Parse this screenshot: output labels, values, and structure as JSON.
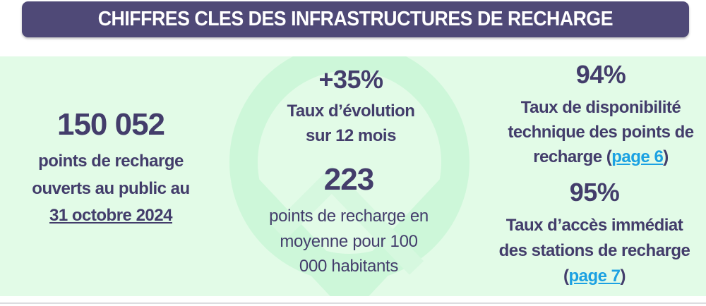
{
  "header": {
    "title": "CHIFFRES CLES DES INFRASTRUCTURES DE RECHARGE"
  },
  "colors": {
    "banner": "#4f4977",
    "panel": "#e2fbe7",
    "text": "#433d6b",
    "link": "#1ba1e2",
    "watermark": "#cdf7d9"
  },
  "left": {
    "value": "150 052",
    "lines": [
      "points de recharge",
      "ouverts au public au"
    ],
    "date": "31 octobre 2024"
  },
  "middle": {
    "evolution_value": "+35%",
    "evolution_lines": [
      "Taux d’évolution",
      "sur 12 mois"
    ],
    "density_value": "223",
    "density_lines": [
      "points de recharge en",
      "moyenne pour 100",
      "000 habitants"
    ]
  },
  "right": {
    "availability_value": "94%",
    "availability_lines": [
      "Taux de disponibilité",
      "technique des points de",
      "recharge ("
    ],
    "availability_link": "page 6",
    "availability_close": ")",
    "access_value": "95%",
    "access_lines": [
      "Taux d’accès immédiat",
      "des stations de recharge",
      "("
    ],
    "access_link": "page 7",
    "access_close": ")"
  }
}
